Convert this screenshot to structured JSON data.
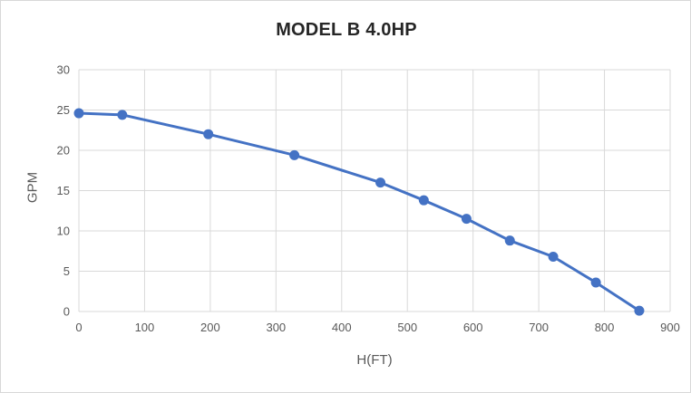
{
  "window": {
    "background": "#ffffff",
    "border_color": "#d8d8d8"
  },
  "chart_data": {
    "type": "line",
    "title": "MODEL B 4.0HP",
    "xlabel": "H(FT)",
    "ylabel": "GPM",
    "xlim": [
      0,
      900
    ],
    "ylim": [
      0,
      30
    ],
    "x_ticks": [
      0,
      100,
      200,
      300,
      400,
      500,
      600,
      700,
      800,
      900
    ],
    "y_ticks": [
      0,
      5,
      10,
      15,
      20,
      25,
      30
    ],
    "grid": true,
    "legend": "none",
    "series": [
      {
        "name": "MODEL B 4.0HP",
        "marker": "circle",
        "x": [
          0,
          66,
          197,
          328,
          459,
          525,
          590,
          656,
          722,
          787,
          853
        ],
        "y": [
          24.6,
          24.4,
          22.0,
          19.4,
          16.0,
          13.8,
          11.5,
          8.8,
          6.8,
          3.6,
          0.1
        ]
      }
    ],
    "colors": {
      "line": "#4472c4",
      "marker": "#4472c4",
      "gridline": "#d9d9d9",
      "tick_label": "#595959",
      "title": "#262626",
      "axis_title": "#595959"
    }
  }
}
